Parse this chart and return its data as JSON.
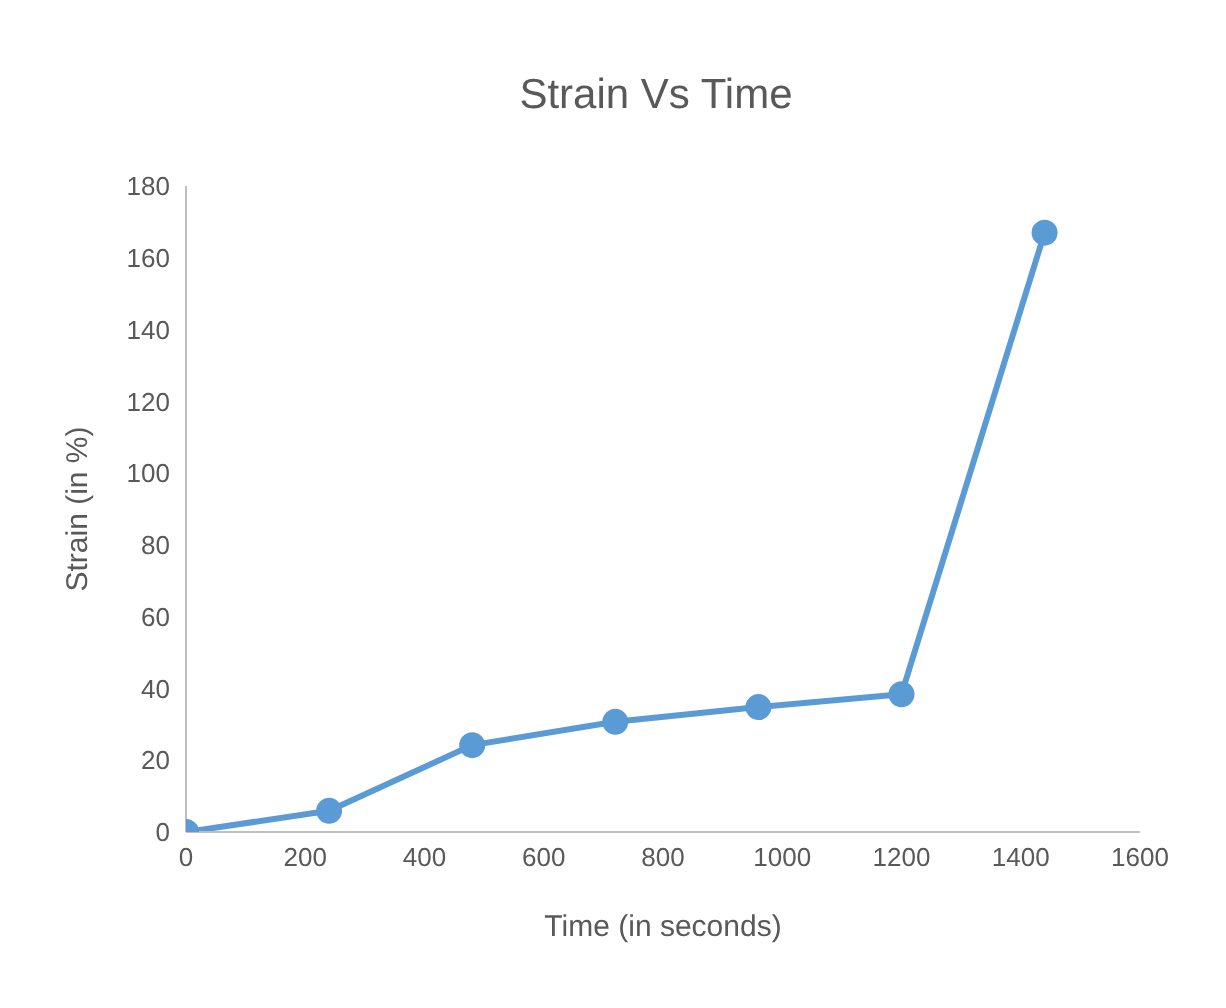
{
  "chart_data": {
    "type": "line",
    "title": "Strain Vs Time",
    "xlabel": "Time (in seconds)",
    "ylabel": "Strain (in %)",
    "x": [
      0,
      240,
      480,
      720,
      960,
      1200,
      1440
    ],
    "series": [
      {
        "color": "#5b9bd5",
        "values": [
          0,
          5.9,
          24.2,
          30.7,
          34.8,
          38.4,
          167
        ]
      }
    ],
    "xlim": [
      0,
      1600
    ],
    "xticks": [
      0,
      200,
      400,
      600,
      800,
      1000,
      1200,
      1400,
      1600
    ],
    "ylim": [
      0,
      180
    ],
    "yticks": [
      0,
      20,
      40,
      60,
      80,
      100,
      120,
      140,
      160,
      180
    ],
    "grid": false,
    "legend": false,
    "marker": "circle",
    "line_style": "solid"
  }
}
